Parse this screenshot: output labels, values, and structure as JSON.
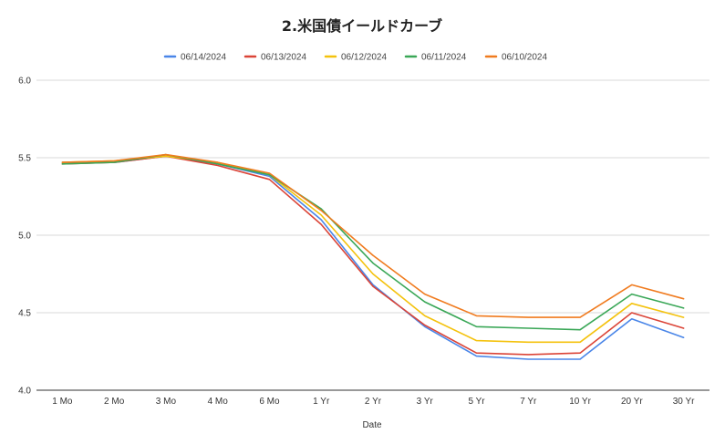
{
  "chart_data": {
    "type": "line",
    "title": "2.米国債イールドカーブ",
    "xlabel": "Date",
    "ylabel": "",
    "ylim": [
      4.0,
      6.0
    ],
    "yticks": [
      "4.0",
      "4.5",
      "5.0",
      "5.5",
      "6.0"
    ],
    "grid": true,
    "legend_position": "top",
    "categories": [
      "1 Mo",
      "2 Mo",
      "3 Mo",
      "4 Mo",
      "6 Mo",
      "1 Yr",
      "2 Yr",
      "3 Yr",
      "5 Yr",
      "7 Yr",
      "10 Yr",
      "20 Yr",
      "30 Yr"
    ],
    "series": [
      {
        "name": "06/14/2024",
        "color": "#4a86e8",
        "values": [
          5.47,
          5.47,
          5.51,
          5.46,
          5.38,
          5.1,
          4.68,
          4.41,
          4.22,
          4.2,
          4.2,
          4.46,
          4.34
        ]
      },
      {
        "name": "06/13/2024",
        "color": "#db4437",
        "values": [
          5.46,
          5.47,
          5.51,
          5.45,
          5.36,
          5.07,
          4.67,
          4.42,
          4.24,
          4.23,
          4.24,
          4.5,
          4.4
        ]
      },
      {
        "name": "06/12/2024",
        "color": "#f4c20d",
        "values": [
          5.47,
          5.48,
          5.51,
          5.47,
          5.39,
          5.13,
          4.75,
          4.48,
          4.32,
          4.31,
          4.31,
          4.56,
          4.47
        ]
      },
      {
        "name": "06/11/2024",
        "color": "#3aa757",
        "values": [
          5.46,
          5.47,
          5.52,
          5.46,
          5.39,
          5.17,
          4.82,
          4.57,
          4.41,
          4.4,
          4.39,
          4.62,
          4.53
        ]
      },
      {
        "name": "06/10/2024",
        "color": "#f07b1f",
        "values": [
          5.47,
          5.48,
          5.52,
          5.47,
          5.4,
          5.16,
          4.87,
          4.62,
          4.48,
          4.47,
          4.47,
          4.68,
          4.59
        ]
      }
    ]
  }
}
